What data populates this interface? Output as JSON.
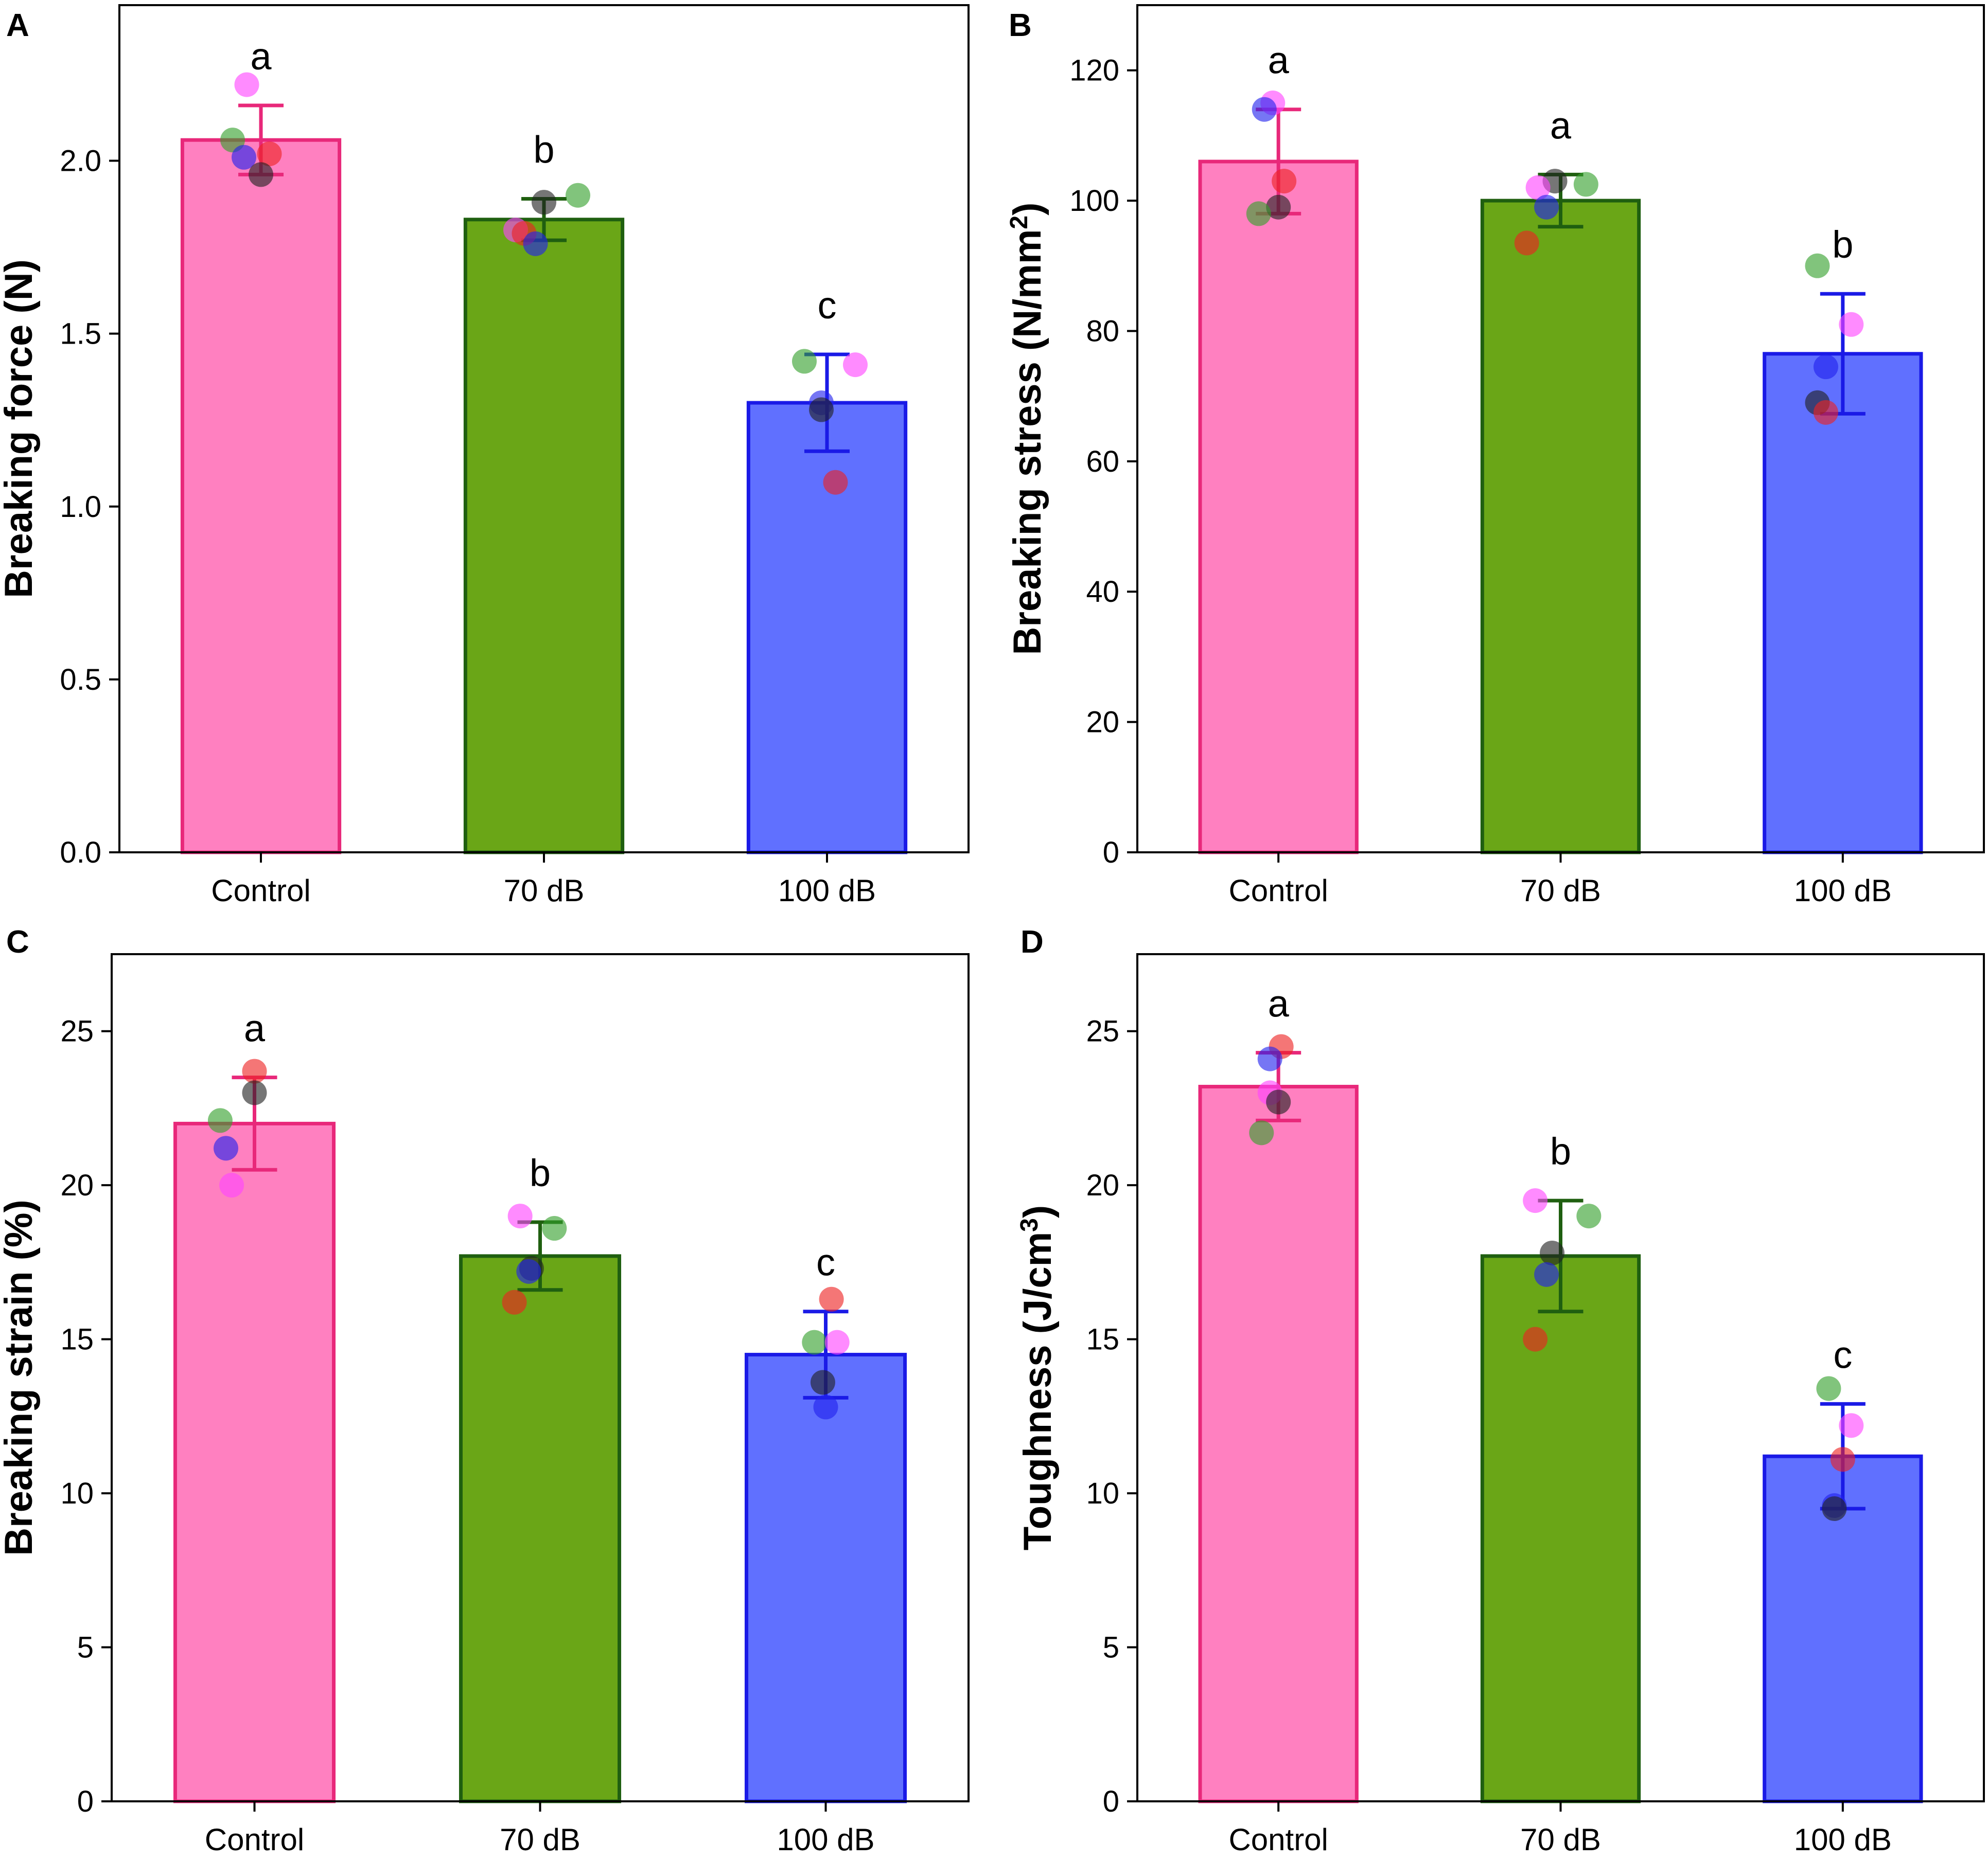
{
  "figure": {
    "panels_count": 4
  },
  "chart_data": [
    {
      "panel": "A",
      "type": "bar",
      "title": "",
      "xlabel": "",
      "ylabel": "Breaking force (N)",
      "ylabel_sup": "",
      "ylabel_end": "",
      "categories": [
        "Control",
        "70 dB",
        "100 dB"
      ],
      "values": [
        2.06,
        1.83,
        1.3
      ],
      "errors": [
        0.1,
        0.06,
        0.14
      ],
      "significance": [
        "a",
        "b",
        "c"
      ],
      "ylim": [
        0,
        2.45
      ],
      "yticks": [
        0.0,
        0.5,
        1.0,
        1.5,
        2.0
      ],
      "ytick_labels": [
        "0.0",
        "0.5",
        "1.0",
        "1.5",
        "2.0"
      ],
      "points": [
        [
          {
            "y": 2.22,
            "color": "#ff44ff",
            "dx": -0.05
          },
          {
            "y": 2.06,
            "color": "#33a02c",
            "dx": -0.1
          },
          {
            "y": 2.02,
            "color": "#ee2222",
            "dx": 0.03
          },
          {
            "y": 2.01,
            "color": "#2222ee",
            "dx": -0.06
          },
          {
            "y": 1.96,
            "color": "#222222",
            "dx": 0.0
          }
        ],
        [
          {
            "y": 1.9,
            "color": "#33a02c",
            "dx": 0.12
          },
          {
            "y": 1.88,
            "color": "#222222",
            "dx": 0.0
          },
          {
            "y": 1.8,
            "color": "#ff44ff",
            "dx": -0.1
          },
          {
            "y": 1.79,
            "color": "#ee2222",
            "dx": -0.07
          },
          {
            "y": 1.76,
            "color": "#2222ee",
            "dx": -0.03
          }
        ],
        [
          {
            "y": 1.42,
            "color": "#33a02c",
            "dx": -0.08
          },
          {
            "y": 1.41,
            "color": "#ff44ff",
            "dx": 0.1
          },
          {
            "y": 1.3,
            "color": "#2222ee",
            "dx": -0.02
          },
          {
            "y": 1.28,
            "color": "#222222",
            "dx": -0.02
          },
          {
            "y": 1.07,
            "color": "#ee2222",
            "dx": 0.03
          }
        ]
      ]
    },
    {
      "panel": "B",
      "type": "bar",
      "title": "",
      "xlabel": "",
      "ylabel": "Breaking stress (N/mm",
      "ylabel_sup": "2",
      "ylabel_end": ")",
      "categories": [
        "Control",
        "70 dB",
        "100 dB"
      ],
      "values": [
        106,
        100,
        76.5
      ],
      "errors": [
        8,
        4,
        9.2
      ],
      "significance": [
        "a",
        "a",
        "b"
      ],
      "ylim": [
        0,
        130
      ],
      "yticks": [
        0,
        20,
        40,
        60,
        80,
        100,
        120
      ],
      "ytick_labels": [
        "0",
        "20",
        "40",
        "60",
        "80",
        "100",
        "120"
      ],
      "points": [
        [
          {
            "y": 115,
            "color": "#ff44ff",
            "dx": -0.02
          },
          {
            "y": 114,
            "color": "#2222ee",
            "dx": -0.05
          },
          {
            "y": 103,
            "color": "#ee2222",
            "dx": 0.02
          },
          {
            "y": 99,
            "color": "#222222",
            "dx": 0.0
          },
          {
            "y": 98,
            "color": "#33a02c",
            "dx": -0.07
          }
        ],
        [
          {
            "y": 103,
            "color": "#222222",
            "dx": -0.02
          },
          {
            "y": 102.5,
            "color": "#33a02c",
            "dx": 0.09
          },
          {
            "y": 102,
            "color": "#ff44ff",
            "dx": -0.08
          },
          {
            "y": 99,
            "color": "#2222ee",
            "dx": -0.05
          },
          {
            "y": 93.5,
            "color": "#ee2222",
            "dx": -0.12
          }
        ],
        [
          {
            "y": 90,
            "color": "#33a02c",
            "dx": -0.09
          },
          {
            "y": 81,
            "color": "#ff44ff",
            "dx": 0.03
          },
          {
            "y": 74.5,
            "color": "#2222ee",
            "dx": -0.06
          },
          {
            "y": 69,
            "color": "#222222",
            "dx": -0.09
          },
          {
            "y": 67.5,
            "color": "#ee2222",
            "dx": -0.06
          }
        ]
      ]
    },
    {
      "panel": "C",
      "type": "bar",
      "title": "",
      "xlabel": "",
      "ylabel": "Breaking strain (%)",
      "ylabel_sup": "",
      "ylabel_end": "",
      "categories": [
        "Control",
        "70 dB",
        "100 dB"
      ],
      "values": [
        22.0,
        17.7,
        14.5
      ],
      "errors": [
        1.5,
        1.1,
        1.4
      ],
      "significance": [
        "a",
        "b",
        "c"
      ],
      "ylim": [
        0,
        27.5
      ],
      "yticks": [
        0,
        5,
        10,
        15,
        20,
        25
      ],
      "ytick_labels": [
        "0",
        "5",
        "10",
        "15",
        "20",
        "25"
      ],
      "points": [
        [
          {
            "y": 23.7,
            "color": "#ee2222",
            "dx": 0.0
          },
          {
            "y": 23.0,
            "color": "#222222",
            "dx": 0.0
          },
          {
            "y": 22.1,
            "color": "#33a02c",
            "dx": -0.12
          },
          {
            "y": 21.2,
            "color": "#2222ee",
            "dx": -0.1
          },
          {
            "y": 20.0,
            "color": "#ff44ff",
            "dx": -0.08
          }
        ],
        [
          {
            "y": 19.0,
            "color": "#ff44ff",
            "dx": -0.07
          },
          {
            "y": 18.6,
            "color": "#33a02c",
            "dx": 0.05
          },
          {
            "y": 17.3,
            "color": "#222222",
            "dx": -0.03
          },
          {
            "y": 17.2,
            "color": "#2222ee",
            "dx": -0.04
          },
          {
            "y": 16.2,
            "color": "#ee2222",
            "dx": -0.09
          }
        ],
        [
          {
            "y": 16.3,
            "color": "#ee2222",
            "dx": 0.02
          },
          {
            "y": 14.9,
            "color": "#33a02c",
            "dx": -0.04
          },
          {
            "y": 14.9,
            "color": "#ff44ff",
            "dx": 0.04
          },
          {
            "y": 13.6,
            "color": "#222222",
            "dx": -0.01
          },
          {
            "y": 12.8,
            "color": "#2222ee",
            "dx": 0.0
          }
        ]
      ]
    },
    {
      "panel": "D",
      "type": "bar",
      "title": "",
      "xlabel": "",
      "ylabel": "Toughness (J/cm",
      "ylabel_sup": "3",
      "ylabel_end": ")",
      "categories": [
        "Control",
        "70 dB",
        "100 dB"
      ],
      "values": [
        23.2,
        17.7,
        11.2
      ],
      "errors": [
        1.1,
        1.8,
        1.7
      ],
      "significance": [
        "a",
        "b",
        "c"
      ],
      "ylim": [
        0,
        27.5
      ],
      "yticks": [
        0,
        5,
        10,
        15,
        20,
        25
      ],
      "ytick_labels": [
        "0",
        "5",
        "10",
        "15",
        "20",
        "25"
      ],
      "points": [
        [
          {
            "y": 24.5,
            "color": "#ee2222",
            "dx": 0.01
          },
          {
            "y": 24.1,
            "color": "#2222ee",
            "dx": -0.03
          },
          {
            "y": 23.0,
            "color": "#ff44ff",
            "dx": -0.03
          },
          {
            "y": 22.7,
            "color": "#222222",
            "dx": 0.0
          },
          {
            "y": 21.7,
            "color": "#33a02c",
            "dx": -0.06
          }
        ],
        [
          {
            "y": 19.5,
            "color": "#ff44ff",
            "dx": -0.09
          },
          {
            "y": 19.0,
            "color": "#33a02c",
            "dx": 0.1
          },
          {
            "y": 17.8,
            "color": "#222222",
            "dx": -0.03
          },
          {
            "y": 17.1,
            "color": "#2222ee",
            "dx": -0.05
          },
          {
            "y": 15.0,
            "color": "#ee2222",
            "dx": -0.09
          }
        ],
        [
          {
            "y": 13.4,
            "color": "#33a02c",
            "dx": -0.05
          },
          {
            "y": 12.2,
            "color": "#ff44ff",
            "dx": 0.03
          },
          {
            "y": 11.1,
            "color": "#ee2222",
            "dx": 0.0
          },
          {
            "y": 9.6,
            "color": "#2222ee",
            "dx": -0.03
          },
          {
            "y": 9.5,
            "color": "#222222",
            "dx": -0.03
          }
        ]
      ]
    }
  ],
  "series_colors": {
    "fills": [
      "#ff80c0",
      "#6aa617",
      "#6070ff"
    ],
    "strokes": [
      "#e8287a",
      "#1f5f10",
      "#1a1ae6"
    ]
  }
}
